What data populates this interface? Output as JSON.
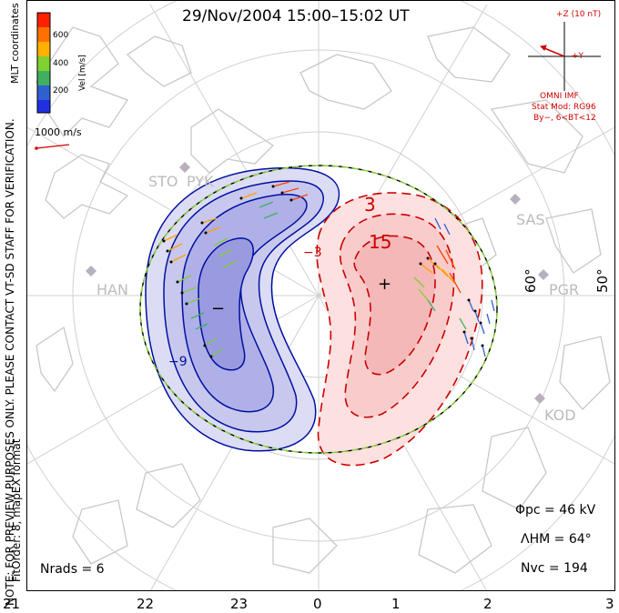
{
  "title": "29/Nov/2004 15:00–15:02 UT",
  "side_text": {
    "line1": "NOTE: FOR PREVIEW PURPOSES ONLY. PLEASE CONTACT VT-SD STAFF FOR VERIFICATION.",
    "line2": "FitOrder: 8, mapEX format"
  },
  "legend": {
    "coord_label": "MLT coordinates",
    "unit_label": "Vel [m/s]",
    "ticks": [
      "600",
      "400",
      "200"
    ],
    "colors": [
      "#ff2000",
      "#ff7000",
      "#ffb000",
      "#80d030",
      "#40b060",
      "#3060d0",
      "#2030e0"
    ]
  },
  "scale_label": "1000 m/s",
  "imf": {
    "z_label": "+Z (10 nT)",
    "y_label": "+Y",
    "source": "OMNI IMF",
    "model": "Stat Mod: RG96",
    "condition": "By−, 6<BT<12"
  },
  "stations": [
    "STO",
    "PYK",
    "SAS",
    "HAN",
    "PGR",
    "KOD"
  ],
  "lat_labels": [
    "60°",
    "50°"
  ],
  "contour_labels": [
    "3",
    "15",
    "−3",
    "−9"
  ],
  "stats": {
    "phi_pc": "Φpc = 46 kV",
    "lambda_hm": "ΛHM = 64°",
    "n_vc": "Nvc = 194",
    "n_rads": "Nrads = 6"
  },
  "mlt_axis": [
    "21",
    "22",
    "23",
    "0",
    "1",
    "2",
    "3"
  ],
  "colors": {
    "positive": "#cc0000",
    "negative": "#0010a0",
    "label_red": "#d00000"
  }
}
